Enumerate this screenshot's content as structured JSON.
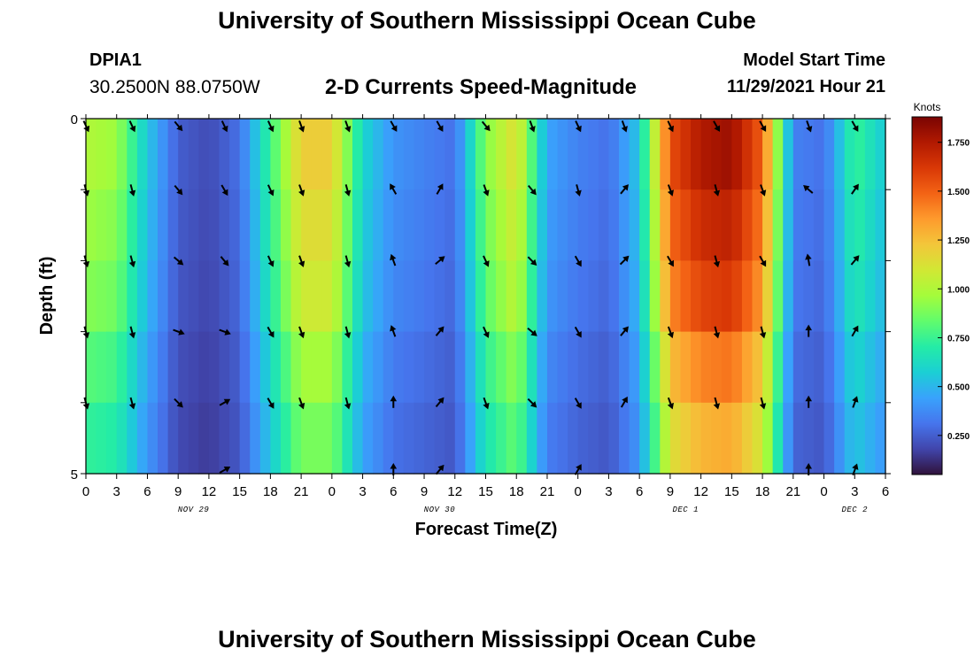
{
  "header": {
    "title": "University of Southern Mississippi Ocean Cube",
    "station_id": "DPIA1",
    "station_coords": "30.2500N  88.0750W",
    "plot_title": "2-D Currents Speed-Magnitude",
    "model_start_label": "Model Start Time",
    "model_start_value": "11/29/2021 Hour 21"
  },
  "footer": {
    "title": "University of Southern Mississippi Ocean Cube"
  },
  "chart_data": {
    "type": "heatmap",
    "title": "2-D Currents Speed-Magnitude",
    "xlabel": "Forecast Time(Z)",
    "ylabel": "Depth (ft)",
    "ylim": [
      0,
      5
    ],
    "y_tick_labels": [
      "0",
      "5"
    ],
    "x_tick_labels": [
      "0",
      "3",
      "6",
      "9",
      "12",
      "15",
      "18",
      "21",
      "0",
      "3",
      "6",
      "9",
      "12",
      "15",
      "18",
      "21",
      "0",
      "3",
      "6",
      "9",
      "12",
      "15",
      "18",
      "21",
      "0",
      "3",
      "6"
    ],
    "x_hours_per_tick": 3,
    "x_range_hours": [
      0,
      78
    ],
    "date_labels": [
      {
        "text": "NOV 29",
        "hour": 10.5
      },
      {
        "text": "NOV 30",
        "hour": 34.5
      },
      {
        "text": "DEC 1",
        "hour": 58.5
      },
      {
        "text": "DEC 2",
        "hour": 75
      }
    ],
    "colorbar": {
      "title": "Knots",
      "min": 0.05,
      "max": 1.88,
      "ticks": [
        "0.250",
        "0.500",
        "0.750",
        "1.000",
        "1.250",
        "1.500",
        "1.750"
      ],
      "colors": [
        "#30123b",
        "#4145ab",
        "#4675ed",
        "#39a2fc",
        "#1bcfd4",
        "#24eca6",
        "#61fc6c",
        "#a4fc3b",
        "#d1e834",
        "#f3c63a",
        "#fe9b2d",
        "#f36315",
        "#d93806",
        "#b11901",
        "#7a0403"
      ]
    },
    "depth_layers_ft": [
      0,
      1,
      2,
      3,
      4,
      5
    ],
    "speed_profile_hours": [
      0,
      3,
      6,
      9,
      12,
      15,
      18,
      21,
      24,
      27,
      30,
      33,
      36,
      39,
      42,
      45,
      48,
      51,
      54,
      57,
      60,
      63,
      66,
      69,
      72,
      75,
      78
    ],
    "speed_profile_knots": [
      1.0,
      0.95,
      0.55,
      0.25,
      0.2,
      0.3,
      0.75,
      1.2,
      1.2,
      0.6,
      0.4,
      0.35,
      0.3,
      0.9,
      1.15,
      0.45,
      0.35,
      0.3,
      0.55,
      1.55,
      1.75,
      1.8,
      1.5,
      0.35,
      0.3,
      0.75,
      0.55
    ],
    "depth_factor": [
      1.0,
      0.95,
      0.9,
      0.8,
      0.72,
      0.62
    ],
    "current_arrows": {
      "hours": [
        0,
        4.5,
        9,
        13.5,
        18,
        21,
        25.5,
        30,
        34.5,
        39,
        43.5,
        48,
        52.5,
        57,
        61.5,
        66,
        70.5,
        75
      ],
      "depths_ft": [
        0.1,
        1.0,
        2.0,
        3.0,
        4.0,
        4.95
      ],
      "directions_deg_from_up": [
        [
          155,
          155,
          140,
          155,
          155,
          160,
          160,
          150,
          150,
          140,
          160,
          155,
          160,
          155,
          150,
          150,
          160,
          150
        ],
        [
          165,
          165,
          140,
          150,
          155,
          160,
          165,
          -30,
          30,
          160,
          140,
          165,
          40,
          160,
          165,
          160,
          -50,
          35
        ],
        [
          165,
          165,
          130,
          140,
          155,
          160,
          165,
          -20,
          50,
          155,
          135,
          150,
          45,
          150,
          165,
          150,
          -10,
          40
        ],
        [
          165,
          165,
          110,
          110,
          150,
          160,
          165,
          -20,
          40,
          155,
          130,
          150,
          40,
          160,
          165,
          165,
          0,
          30
        ],
        [
          165,
          165,
          135,
          60,
          150,
          160,
          165,
          0,
          40,
          160,
          135,
          150,
          30,
          160,
          165,
          165,
          0,
          20
        ],
        [
          null,
          null,
          null,
          60,
          null,
          null,
          null,
          0,
          40,
          null,
          null,
          30,
          null,
          null,
          null,
          null,
          0,
          20
        ]
      ]
    }
  }
}
